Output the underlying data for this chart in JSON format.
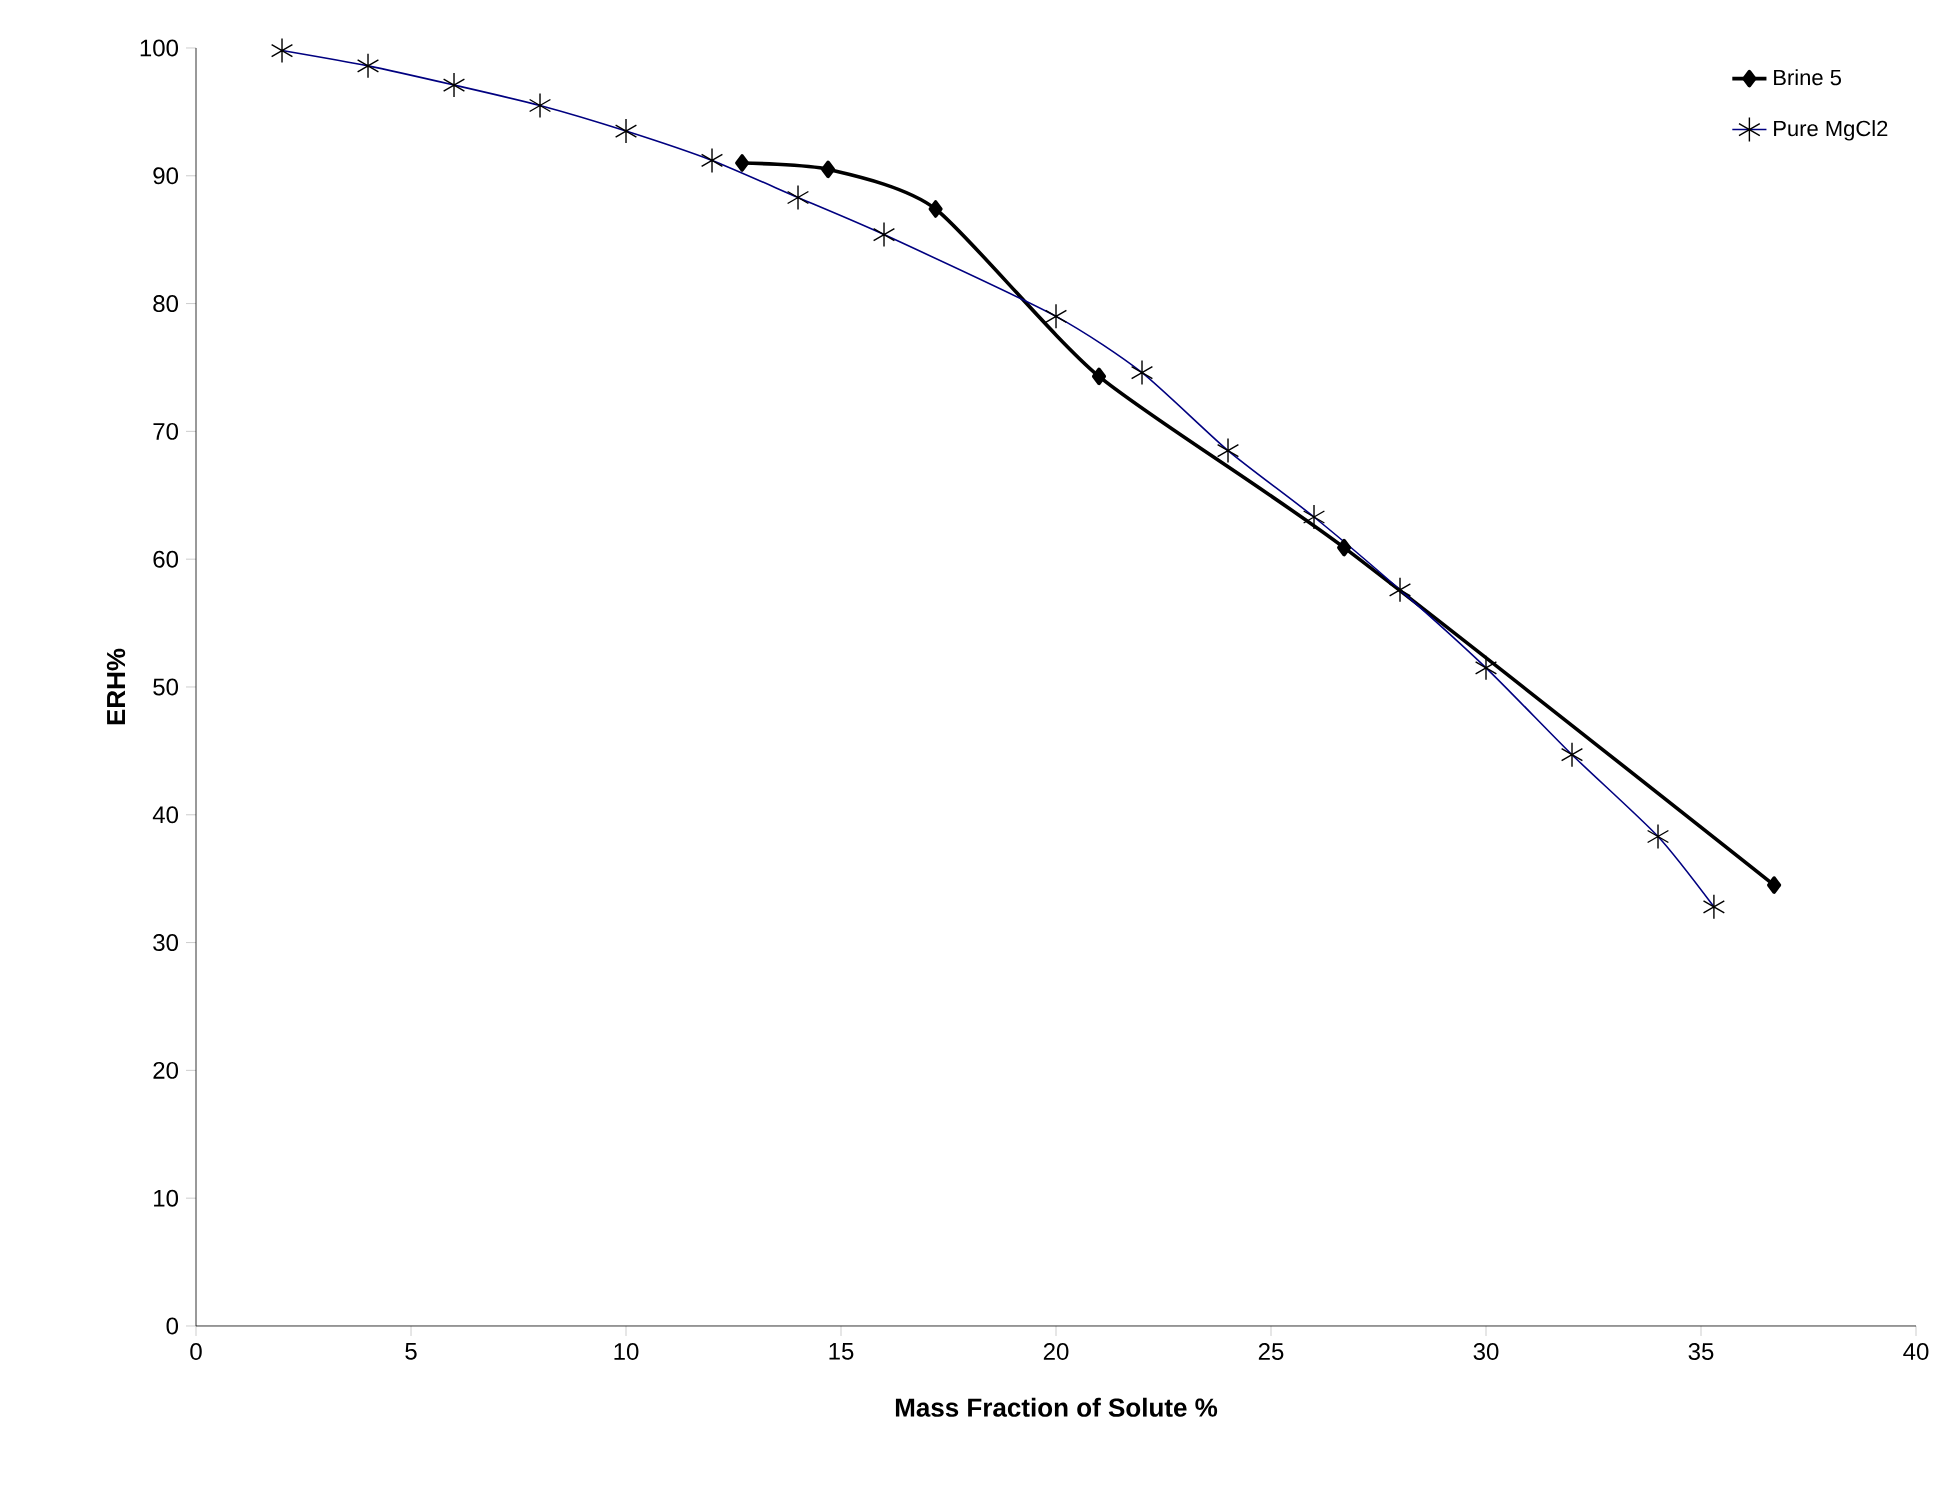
{
  "chart_data": {
    "type": "line",
    "xlabel": "Mass Fraction of Solute %",
    "ylabel": "ERH%",
    "xlim": [
      0,
      40
    ],
    "xticks": [
      0,
      5,
      10,
      15,
      20,
      25,
      30,
      35,
      40
    ],
    "ylim": [
      0,
      100
    ],
    "yticks": [
      0,
      10,
      20,
      30,
      40,
      50,
      60,
      70,
      80,
      90,
      100
    ],
    "legend": "top right",
    "grid": false,
    "series": [
      {
        "name": "Brine 5",
        "color": "#000000",
        "marker": "diamond",
        "x": [
          12.7,
          14.7,
          17.2,
          21,
          26.7,
          36.7
        ],
        "values": [
          91,
          90.5,
          87.4,
          74.3,
          60.9,
          34.5
        ]
      },
      {
        "name": "Pure MgCl2",
        "color": "#000080",
        "marker": "cross",
        "x": [
          2,
          4,
          6,
          8,
          10,
          12,
          14,
          16,
          20,
          22,
          24,
          26,
          28,
          30,
          32,
          34,
          35.3
        ],
        "values": [
          99.8,
          98.6,
          97.1,
          95.5,
          93.5,
          91.2,
          88.3,
          85.4,
          79,
          74.6,
          68.5,
          63.3,
          57.6,
          51.5,
          44.7,
          38.3,
          32.8
        ]
      }
    ]
  }
}
